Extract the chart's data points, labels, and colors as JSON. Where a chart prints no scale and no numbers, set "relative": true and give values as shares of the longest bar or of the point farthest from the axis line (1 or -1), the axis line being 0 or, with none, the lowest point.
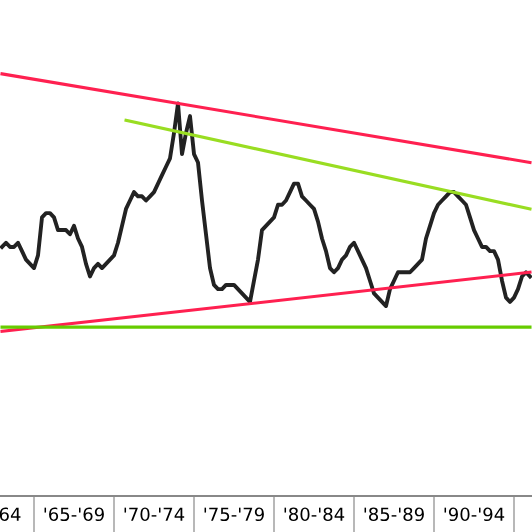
{
  "chart_data": {
    "type": "line",
    "relative": true,
    "categories": [
      null,
      null,
      "64",
      null,
      null,
      null,
      null,
      null,
      null,
      null,
      null,
      null,
      null,
      null,
      null,
      null,
      null,
      null,
      "'65-'69",
      null,
      null,
      null,
      null,
      null,
      null,
      null,
      null,
      null,
      null,
      null,
      null,
      null,
      null,
      null,
      null,
      null,
      null,
      null,
      "'70-'74",
      null,
      null,
      null,
      null,
      null,
      null,
      null,
      null,
      null,
      null,
      null,
      null,
      null,
      null,
      null,
      null,
      null,
      null,
      null,
      "'75-'79",
      null,
      null,
      null,
      null,
      null,
      null,
      null,
      null,
      null,
      null,
      null,
      null,
      null,
      null,
      null,
      null,
      null,
      null,
      null,
      "'80-'84",
      null,
      null,
      null,
      null,
      null,
      null,
      null,
      null,
      null,
      null,
      null,
      null,
      null,
      null,
      null,
      null,
      null,
      null,
      null,
      "'85-'89",
      null,
      null,
      null,
      null,
      null,
      null,
      null,
      null,
      null,
      null,
      null,
      null,
      null,
      null,
      null,
      null,
      null,
      null,
      null,
      "'90-'94",
      null,
      null,
      null,
      null,
      null,
      null,
      null,
      null,
      null,
      null,
      null,
      null,
      null,
      null
    ],
    "tick_labels": "x",
    "grid": false,
    "legend": false,
    "marker": "none",
    "line_style": "solid",
    "series": [
      {
        "color": "#222222",
        "values": [
          0.59,
          0.6,
          0.59,
          0.59,
          0.6,
          0.58,
          0.56,
          0.55,
          0.54,
          0.57,
          0.66,
          0.67,
          0.67,
          0.66,
          0.63,
          0.63,
          0.63,
          0.62,
          0.64,
          0.61,
          0.59,
          0.55,
          0.52,
          0.54,
          0.55,
          0.54,
          0.55,
          0.56,
          0.57,
          0.6,
          0.64,
          0.68,
          0.7,
          0.72,
          0.71,
          0.71,
          0.7,
          0.71,
          0.72,
          0.74,
          0.76,
          0.78,
          0.8,
          0.86,
          0.93,
          0.81,
          0.86,
          0.9,
          0.81,
          0.79,
          0.7,
          0.62,
          0.54,
          0.5,
          0.49,
          0.49,
          0.5,
          0.5,
          0.5,
          0.49,
          0.48,
          0.47,
          0.46,
          0.51,
          0.56,
          0.63,
          0.64,
          0.65,
          0.66,
          0.69,
          0.69,
          0.7,
          0.72,
          0.74,
          0.74,
          0.71,
          0.7,
          0.69,
          0.68,
          0.65,
          0.61,
          0.58,
          0.54,
          0.53,
          0.54,
          0.56,
          0.57,
          0.59,
          0.6,
          0.58,
          0.56,
          0.54,
          0.51,
          0.48,
          0.47,
          0.46,
          0.45,
          0.49,
          0.51,
          0.53,
          0.53,
          0.53,
          0.53,
          0.54,
          0.55,
          0.56,
          0.61,
          0.64,
          0.67,
          0.69,
          0.7,
          0.71,
          0.72,
          0.72,
          0.71,
          0.7,
          0.69,
          0.66,
          0.63,
          0.61,
          0.59,
          0.59,
          0.58,
          0.58,
          0.56,
          0.51,
          0.47,
          0.46,
          0.47,
          0.49,
          0.52,
          0.53,
          0.52
        ]
      },
      {
        "type": "line",
        "color": "#ff2050",
        "values": [
          1.0,
          null,
          null,
          null,
          null,
          null,
          null,
          null,
          null,
          null,
          null,
          null,
          null,
          null,
          null,
          null,
          null,
          null,
          null,
          null,
          null,
          null,
          null,
          null,
          null,
          null,
          null,
          null,
          null,
          null,
          null,
          null,
          null,
          null,
          null,
          null,
          null,
          null,
          null,
          null,
          null,
          null,
          null,
          null,
          null,
          null,
          null,
          null,
          null,
          null,
          null,
          null,
          null,
          null,
          null,
          null,
          null,
          null,
          null,
          null,
          null,
          null,
          null,
          null,
          null,
          null,
          null,
          null,
          null,
          null,
          null,
          null,
          null,
          null,
          null,
          null,
          null,
          null,
          null,
          null,
          null,
          null,
          null,
          null,
          null,
          null,
          null,
          null,
          null,
          null,
          null,
          null,
          null,
          null,
          null,
          null,
          null,
          null,
          null,
          null,
          null,
          null,
          null,
          null,
          null,
          null,
          null,
          null,
          null,
          null,
          null,
          null,
          null,
          null,
          null,
          null,
          null,
          null,
          null,
          null,
          null,
          null,
          null,
          null,
          null,
          null,
          null,
          null,
          null,
          null,
          null,
          null,
          0.79
        ]
      },
      {
        "type": "line",
        "color": "#99dd22",
        "values": [
          null,
          null,
          null,
          null,
          null,
          null,
          null,
          null,
          null,
          null,
          null,
          null,
          null,
          null,
          null,
          null,
          null,
          null,
          null,
          null,
          null,
          null,
          null,
          null,
          null,
          null,
          null,
          null,
          null,
          null,
          null,
          0.89,
          null,
          null,
          null,
          null,
          null,
          null,
          null,
          null,
          null,
          null,
          null,
          null,
          null,
          null,
          null,
          null,
          null,
          null,
          null,
          null,
          null,
          null,
          null,
          null,
          null,
          null,
          null,
          null,
          null,
          null,
          null,
          null,
          null,
          null,
          null,
          null,
          null,
          null,
          null,
          null,
          null,
          null,
          null,
          null,
          null,
          null,
          null,
          null,
          null,
          null,
          null,
          null,
          null,
          null,
          null,
          null,
          null,
          null,
          null,
          null,
          null,
          null,
          null,
          null,
          null,
          null,
          null,
          null,
          null,
          null,
          null,
          null,
          null,
          null,
          null,
          null,
          null,
          null,
          null,
          null,
          null,
          null,
          null,
          null,
          null,
          null,
          null,
          null,
          null,
          null,
          null,
          null,
          null,
          null,
          null,
          null,
          null,
          null,
          null,
          null,
          0.68
        ]
      },
      {
        "type": "line",
        "color": "#ff2050",
        "values": [
          0.39,
          null,
          null,
          null,
          null,
          null,
          null,
          null,
          null,
          null,
          null,
          null,
          null,
          null,
          null,
          null,
          null,
          null,
          null,
          null,
          null,
          null,
          null,
          null,
          null,
          null,
          null,
          null,
          null,
          null,
          null,
          null,
          null,
          null,
          null,
          null,
          null,
          null,
          null,
          null,
          null,
          null,
          null,
          null,
          null,
          null,
          null,
          null,
          null,
          null,
          null,
          null,
          null,
          null,
          null,
          null,
          null,
          null,
          null,
          null,
          null,
          null,
          null,
          null,
          null,
          null,
          null,
          null,
          null,
          null,
          null,
          null,
          null,
          null,
          null,
          null,
          null,
          null,
          null,
          null,
          null,
          null,
          null,
          null,
          null,
          null,
          null,
          null,
          null,
          null,
          null,
          null,
          null,
          null,
          null,
          null,
          null,
          null,
          null,
          null,
          null,
          null,
          null,
          null,
          null,
          null,
          null,
          null,
          null,
          null,
          null,
          null,
          null,
          null,
          null,
          null,
          null,
          null,
          null,
          null,
          null,
          null,
          null,
          null,
          null,
          null,
          null,
          null,
          null,
          null,
          null,
          null,
          0.53
        ]
      },
      {
        "type": "line",
        "color": "#66cc00",
        "values": [
          0.4,
          null,
          null,
          null,
          null,
          null,
          null,
          null,
          null,
          null,
          null,
          null,
          null,
          null,
          null,
          null,
          null,
          null,
          null,
          null,
          null,
          null,
          null,
          null,
          null,
          null,
          null,
          null,
          null,
          null,
          null,
          null,
          null,
          null,
          null,
          null,
          null,
          null,
          null,
          null,
          null,
          null,
          null,
          null,
          null,
          null,
          null,
          null,
          null,
          null,
          null,
          null,
          null,
          null,
          null,
          null,
          null,
          null,
          null,
          null,
          null,
          null,
          null,
          null,
          null,
          null,
          null,
          null,
          null,
          null,
          null,
          null,
          null,
          null,
          null,
          null,
          null,
          null,
          null,
          null,
          null,
          null,
          null,
          null,
          null,
          null,
          null,
          null,
          null,
          null,
          null,
          null,
          null,
          null,
          null,
          null,
          null,
          null,
          null,
          null,
          null,
          null,
          null,
          null,
          null,
          null,
          null,
          null,
          null,
          null,
          null,
          null,
          null,
          null,
          null,
          null,
          null,
          null,
          null,
          null,
          null,
          null,
          null,
          null,
          null,
          null,
          null,
          null,
          null,
          null,
          null,
          null,
          0.4
        ]
      }
    ]
  }
}
